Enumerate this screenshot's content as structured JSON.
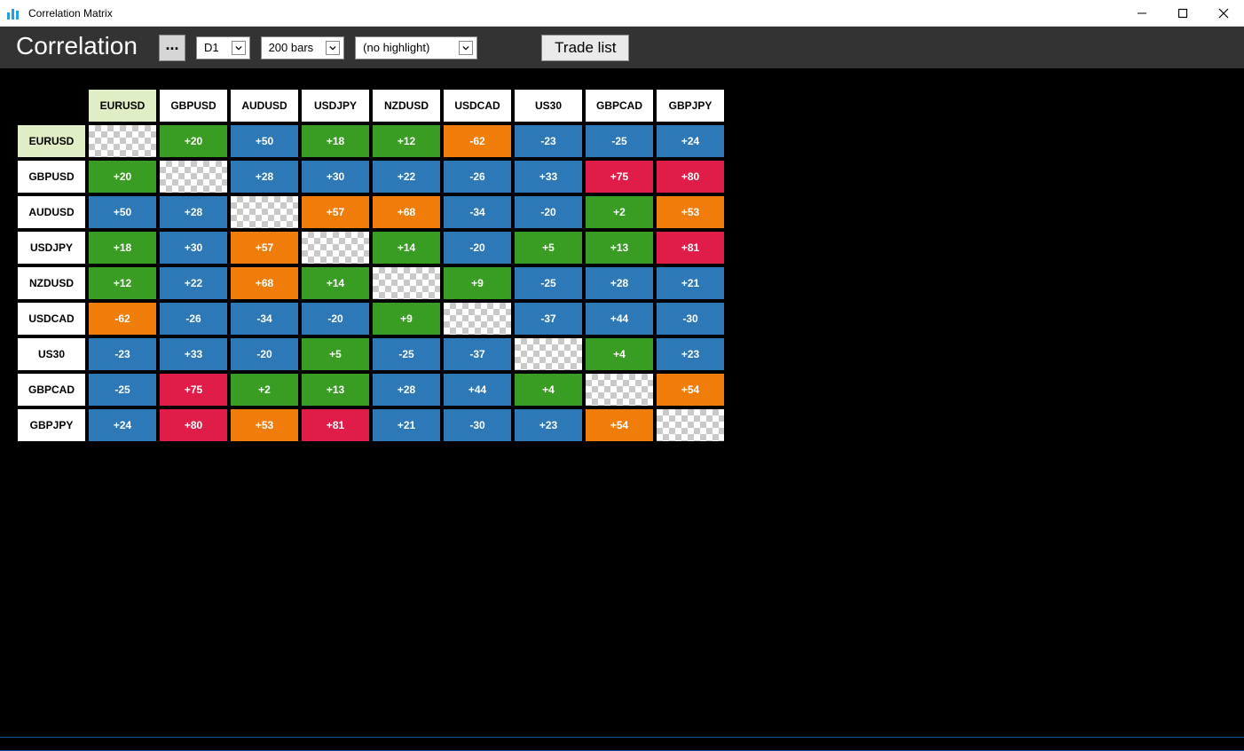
{
  "window": {
    "title": "Correlation Matrix"
  },
  "toolbar": {
    "heading": "Correlation",
    "ellipsis": "...",
    "timeframe": "D1",
    "bars": "200 bars",
    "highlight": "(no highlight)",
    "tradelist": "Trade list"
  },
  "matrix": {
    "symbols": [
      "EURUSD",
      "GBPUSD",
      "AUDUSD",
      "USDJPY",
      "NZDUSD",
      "USDCAD",
      "US30",
      "GBPCAD",
      "GBPJPY"
    ],
    "selected_index": 0,
    "colors": {
      "green": "#3a9d23",
      "blue": "#2d78b6",
      "orange": "#f07d0a",
      "red": "#e01c48",
      "header_sel_bg": "#dfeec4",
      "header_bg": "#ffffff",
      "cell_text": "#ffffff",
      "header_text": "#000000"
    },
    "cells": [
      [
        null,
        {
          "v": "+20",
          "c": "green"
        },
        {
          "v": "+50",
          "c": "blue"
        },
        {
          "v": "+18",
          "c": "green"
        },
        {
          "v": "+12",
          "c": "green"
        },
        {
          "v": "-62",
          "c": "orange"
        },
        {
          "v": "-23",
          "c": "blue"
        },
        {
          "v": "-25",
          "c": "blue"
        },
        {
          "v": "+24",
          "c": "blue"
        }
      ],
      [
        {
          "v": "+20",
          "c": "green"
        },
        null,
        {
          "v": "+28",
          "c": "blue"
        },
        {
          "v": "+30",
          "c": "blue"
        },
        {
          "v": "+22",
          "c": "blue"
        },
        {
          "v": "-26",
          "c": "blue"
        },
        {
          "v": "+33",
          "c": "blue"
        },
        {
          "v": "+75",
          "c": "red"
        },
        {
          "v": "+80",
          "c": "red"
        }
      ],
      [
        {
          "v": "+50",
          "c": "blue"
        },
        {
          "v": "+28",
          "c": "blue"
        },
        null,
        {
          "v": "+57",
          "c": "orange"
        },
        {
          "v": "+68",
          "c": "orange"
        },
        {
          "v": "-34",
          "c": "blue"
        },
        {
          "v": "-20",
          "c": "blue"
        },
        {
          "v": "+2",
          "c": "green"
        },
        {
          "v": "+53",
          "c": "orange"
        }
      ],
      [
        {
          "v": "+18",
          "c": "green"
        },
        {
          "v": "+30",
          "c": "blue"
        },
        {
          "v": "+57",
          "c": "orange"
        },
        null,
        {
          "v": "+14",
          "c": "green"
        },
        {
          "v": "-20",
          "c": "blue"
        },
        {
          "v": "+5",
          "c": "green"
        },
        {
          "v": "+13",
          "c": "green"
        },
        {
          "v": "+81",
          "c": "red"
        }
      ],
      [
        {
          "v": "+12",
          "c": "green"
        },
        {
          "v": "+22",
          "c": "blue"
        },
        {
          "v": "+68",
          "c": "orange"
        },
        {
          "v": "+14",
          "c": "green"
        },
        null,
        {
          "v": "+9",
          "c": "green"
        },
        {
          "v": "-25",
          "c": "blue"
        },
        {
          "v": "+28",
          "c": "blue"
        },
        {
          "v": "+21",
          "c": "blue"
        }
      ],
      [
        {
          "v": "-62",
          "c": "orange"
        },
        {
          "v": "-26",
          "c": "blue"
        },
        {
          "v": "-34",
          "c": "blue"
        },
        {
          "v": "-20",
          "c": "blue"
        },
        {
          "v": "+9",
          "c": "green"
        },
        null,
        {
          "v": "-37",
          "c": "blue"
        },
        {
          "v": "+44",
          "c": "blue"
        },
        {
          "v": "-30",
          "c": "blue"
        }
      ],
      [
        {
          "v": "-23",
          "c": "blue"
        },
        {
          "v": "+33",
          "c": "blue"
        },
        {
          "v": "-20",
          "c": "blue"
        },
        {
          "v": "+5",
          "c": "green"
        },
        {
          "v": "-25",
          "c": "blue"
        },
        {
          "v": "-37",
          "c": "blue"
        },
        null,
        {
          "v": "+4",
          "c": "green"
        },
        {
          "v": "+23",
          "c": "blue"
        }
      ],
      [
        {
          "v": "-25",
          "c": "blue"
        },
        {
          "v": "+75",
          "c": "red"
        },
        {
          "v": "+2",
          "c": "green"
        },
        {
          "v": "+13",
          "c": "green"
        },
        {
          "v": "+28",
          "c": "blue"
        },
        {
          "v": "+44",
          "c": "blue"
        },
        {
          "v": "+4",
          "c": "green"
        },
        null,
        {
          "v": "+54",
          "c": "orange"
        }
      ],
      [
        {
          "v": "+24",
          "c": "blue"
        },
        {
          "v": "+80",
          "c": "red"
        },
        {
          "v": "+53",
          "c": "orange"
        },
        {
          "v": "+81",
          "c": "red"
        },
        {
          "v": "+21",
          "c": "blue"
        },
        {
          "v": "-30",
          "c": "blue"
        },
        {
          "v": "+23",
          "c": "blue"
        },
        {
          "v": "+54",
          "c": "orange"
        },
        null
      ]
    ]
  }
}
